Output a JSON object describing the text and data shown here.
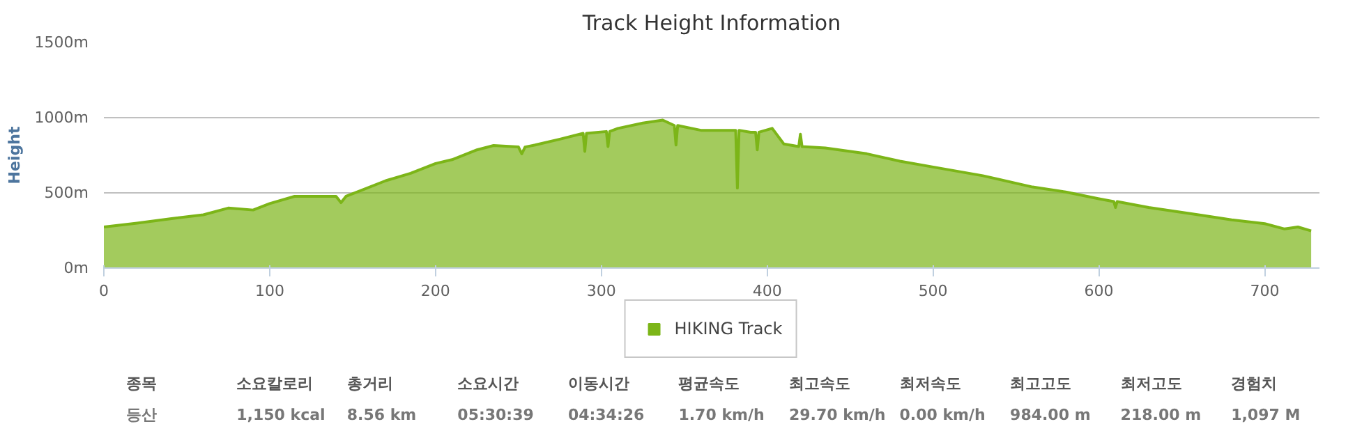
{
  "chart_data": {
    "type": "area",
    "title": "Track Height Information",
    "ylabel": "Height",
    "x": [
      0,
      20,
      40,
      60,
      75,
      90,
      100,
      115,
      140,
      143,
      146,
      155,
      170,
      185,
      200,
      210,
      225,
      235,
      250,
      252,
      254,
      260,
      275,
      289,
      290,
      291,
      303,
      304,
      305,
      310,
      325,
      337,
      344,
      345,
      346,
      360,
      375,
      381,
      382,
      383,
      390,
      393,
      394,
      395,
      403,
      410,
      419,
      420,
      421,
      435,
      460,
      480,
      500,
      530,
      560,
      580,
      600,
      609,
      610,
      611,
      630,
      660,
      680,
      700,
      712,
      720,
      728
    ],
    "series": [
      {
        "name": "HIKING Track",
        "color": "#7cb518",
        "values": [
          273,
          299,
          328,
          354,
          399,
          386,
          429,
          477,
          477,
          435,
          477,
          516,
          581,
          630,
          695,
          721,
          786,
          815,
          805,
          760,
          805,
          818,
          857,
          896,
          776,
          896,
          908,
          808,
          908,
          929,
          964,
          984,
          948,
          818,
          948,
          916,
          916,
          916,
          532,
          916,
          903,
          903,
          786,
          903,
          929,
          825,
          808,
          890,
          808,
          799,
          760,
          711,
          672,
          614,
          539,
          506,
          461,
          442,
          403,
          442,
          403,
          354,
          321,
          295,
          260,
          273,
          247
        ]
      }
    ],
    "xlim": [
      0,
      733
    ],
    "xticks": [
      0,
      100,
      200,
      300,
      400,
      500,
      600,
      700
    ],
    "ylim": [
      0,
      1500
    ],
    "yticks": [
      {
        "value": 0,
        "label": "0m"
      },
      {
        "value": 500,
        "label": "500m"
      },
      {
        "value": 1000,
        "label": "1000m"
      },
      {
        "value": 1500,
        "label": "1500m"
      }
    ],
    "grid": "y",
    "legend": "bottom",
    "annotations": [
      "종목",
      "등산",
      "소요칼로리",
      "1,150 kcal",
      "총거리",
      "8.56 km",
      "소요시간",
      "05:30:39",
      "이동시간",
      "04:34:26",
      "평균속도",
      "1.70 km/h",
      "최고속도",
      "29.70 km/h",
      "최저속도",
      "0.00 km/h",
      "최고고도",
      "984.00 m",
      "최저고도",
      "218.00 m",
      "경험치",
      "1,097 M"
    ]
  }
}
